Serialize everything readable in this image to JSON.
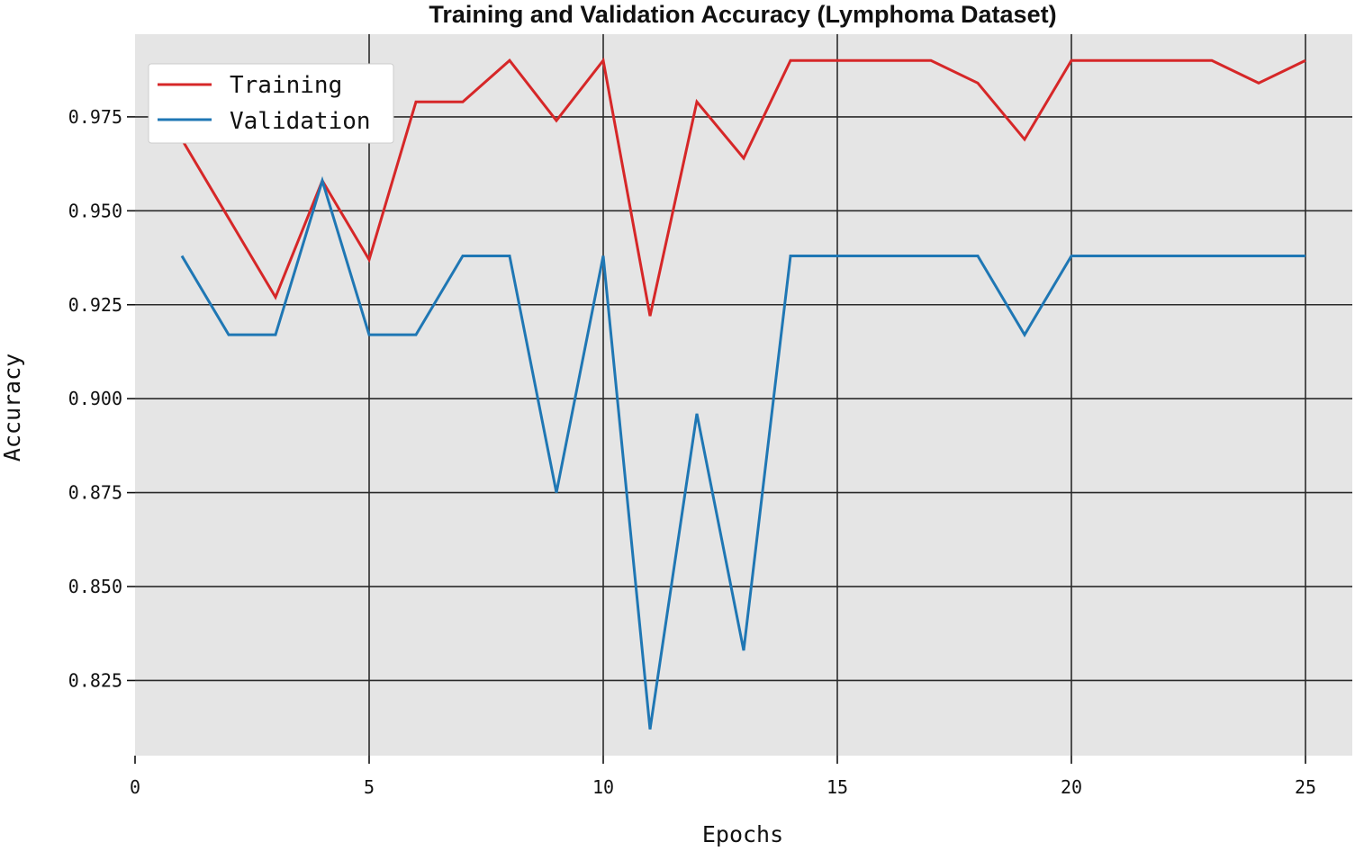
{
  "chart_data": {
    "type": "line",
    "title": "Training and Validation Accuracy (Lymphoma Dataset)",
    "xlabel": "Epochs",
    "ylabel": "Accuracy",
    "xlim": [
      0,
      26
    ],
    "ylim": [
      0.805,
      0.997
    ],
    "xticks": [
      0,
      5,
      10,
      15,
      20,
      25
    ],
    "xtick_labels": [
      "0",
      "5",
      "10",
      "15",
      "20",
      "25"
    ],
    "yticks": [
      0.825,
      0.85,
      0.875,
      0.9,
      0.925,
      0.95,
      0.975
    ],
    "ytick_labels": [
      "0.825",
      "0.850",
      "0.875",
      "0.900",
      "0.925",
      "0.950",
      "0.975"
    ],
    "grid": true,
    "legend_position": "top-left",
    "x": [
      1,
      2,
      3,
      4,
      5,
      6,
      7,
      8,
      9,
      10,
      11,
      12,
      13,
      14,
      15,
      16,
      17,
      18,
      19,
      20,
      21,
      22,
      23,
      24,
      25
    ],
    "series": [
      {
        "name": "Training",
        "color": "#d62728",
        "values": [
          0.969,
          0.948,
          0.927,
          0.958,
          0.937,
          0.979,
          0.979,
          0.99,
          0.974,
          0.99,
          0.922,
          0.979,
          0.964,
          0.99,
          0.99,
          0.99,
          0.99,
          0.984,
          0.969,
          0.99,
          0.99,
          0.99,
          0.99,
          0.984,
          0.99
        ]
      },
      {
        "name": "Validation",
        "color": "#1f77b4",
        "values": [
          0.938,
          0.917,
          0.917,
          0.958,
          0.917,
          0.917,
          0.938,
          0.938,
          0.875,
          0.938,
          0.812,
          0.896,
          0.833,
          0.938,
          0.938,
          0.938,
          0.938,
          0.938,
          0.917,
          0.938,
          0.938,
          0.938,
          0.938,
          0.938,
          0.938
        ]
      }
    ]
  }
}
